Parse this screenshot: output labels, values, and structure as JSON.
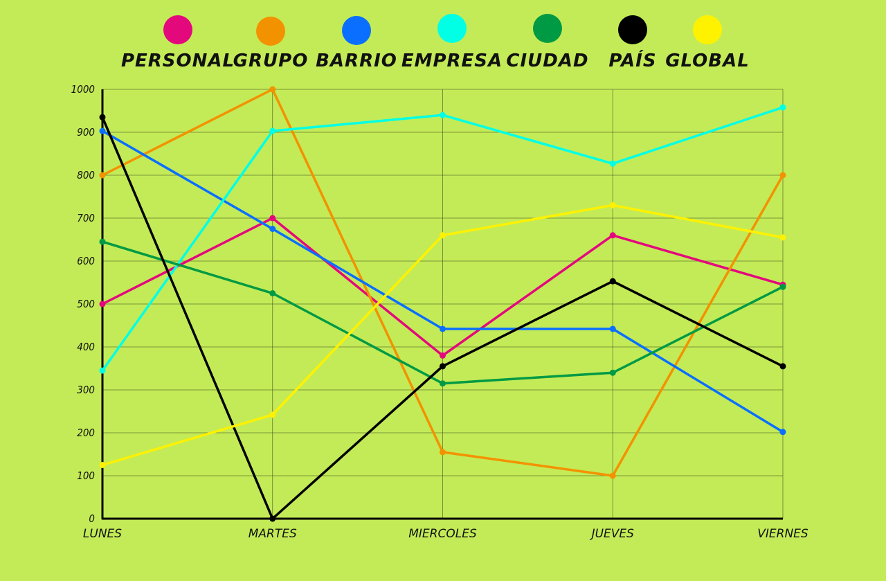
{
  "chart_data": {
    "type": "line",
    "categories": [
      "LUNES",
      "MARTES",
      "MIERCOLES",
      "JUEVES",
      "VIERNES"
    ],
    "ylim": [
      0,
      1000
    ],
    "yticks": [
      0,
      100,
      200,
      300,
      400,
      500,
      600,
      700,
      800,
      900,
      1000
    ],
    "grid": true,
    "legend_position": "top",
    "background": "#c3eb57",
    "series": [
      {
        "name": "PERSONAL",
        "color": "#e4087d",
        "values": [
          500,
          700,
          380,
          660,
          545
        ]
      },
      {
        "name": "GRUPO",
        "color": "#f39200",
        "values": [
          800,
          1000,
          155,
          100,
          800
        ]
      },
      {
        "name": "BARRIO",
        "color": "#0a6fff",
        "values": [
          903,
          675,
          442,
          442,
          202
        ]
      },
      {
        "name": "EMPRESA",
        "color": "#00ffe5",
        "values": [
          345,
          903,
          940,
          827,
          958
        ]
      },
      {
        "name": "CIUDAD",
        "color": "#009a44",
        "values": [
          645,
          525,
          315,
          340,
          540
        ]
      },
      {
        "name": "PAÍS",
        "color": "#000000",
        "values": [
          935,
          0,
          355,
          553,
          355
        ]
      },
      {
        "name": "GLOBAL",
        "color": "#fff200",
        "values": [
          125,
          242,
          660,
          730,
          655
        ]
      }
    ]
  }
}
